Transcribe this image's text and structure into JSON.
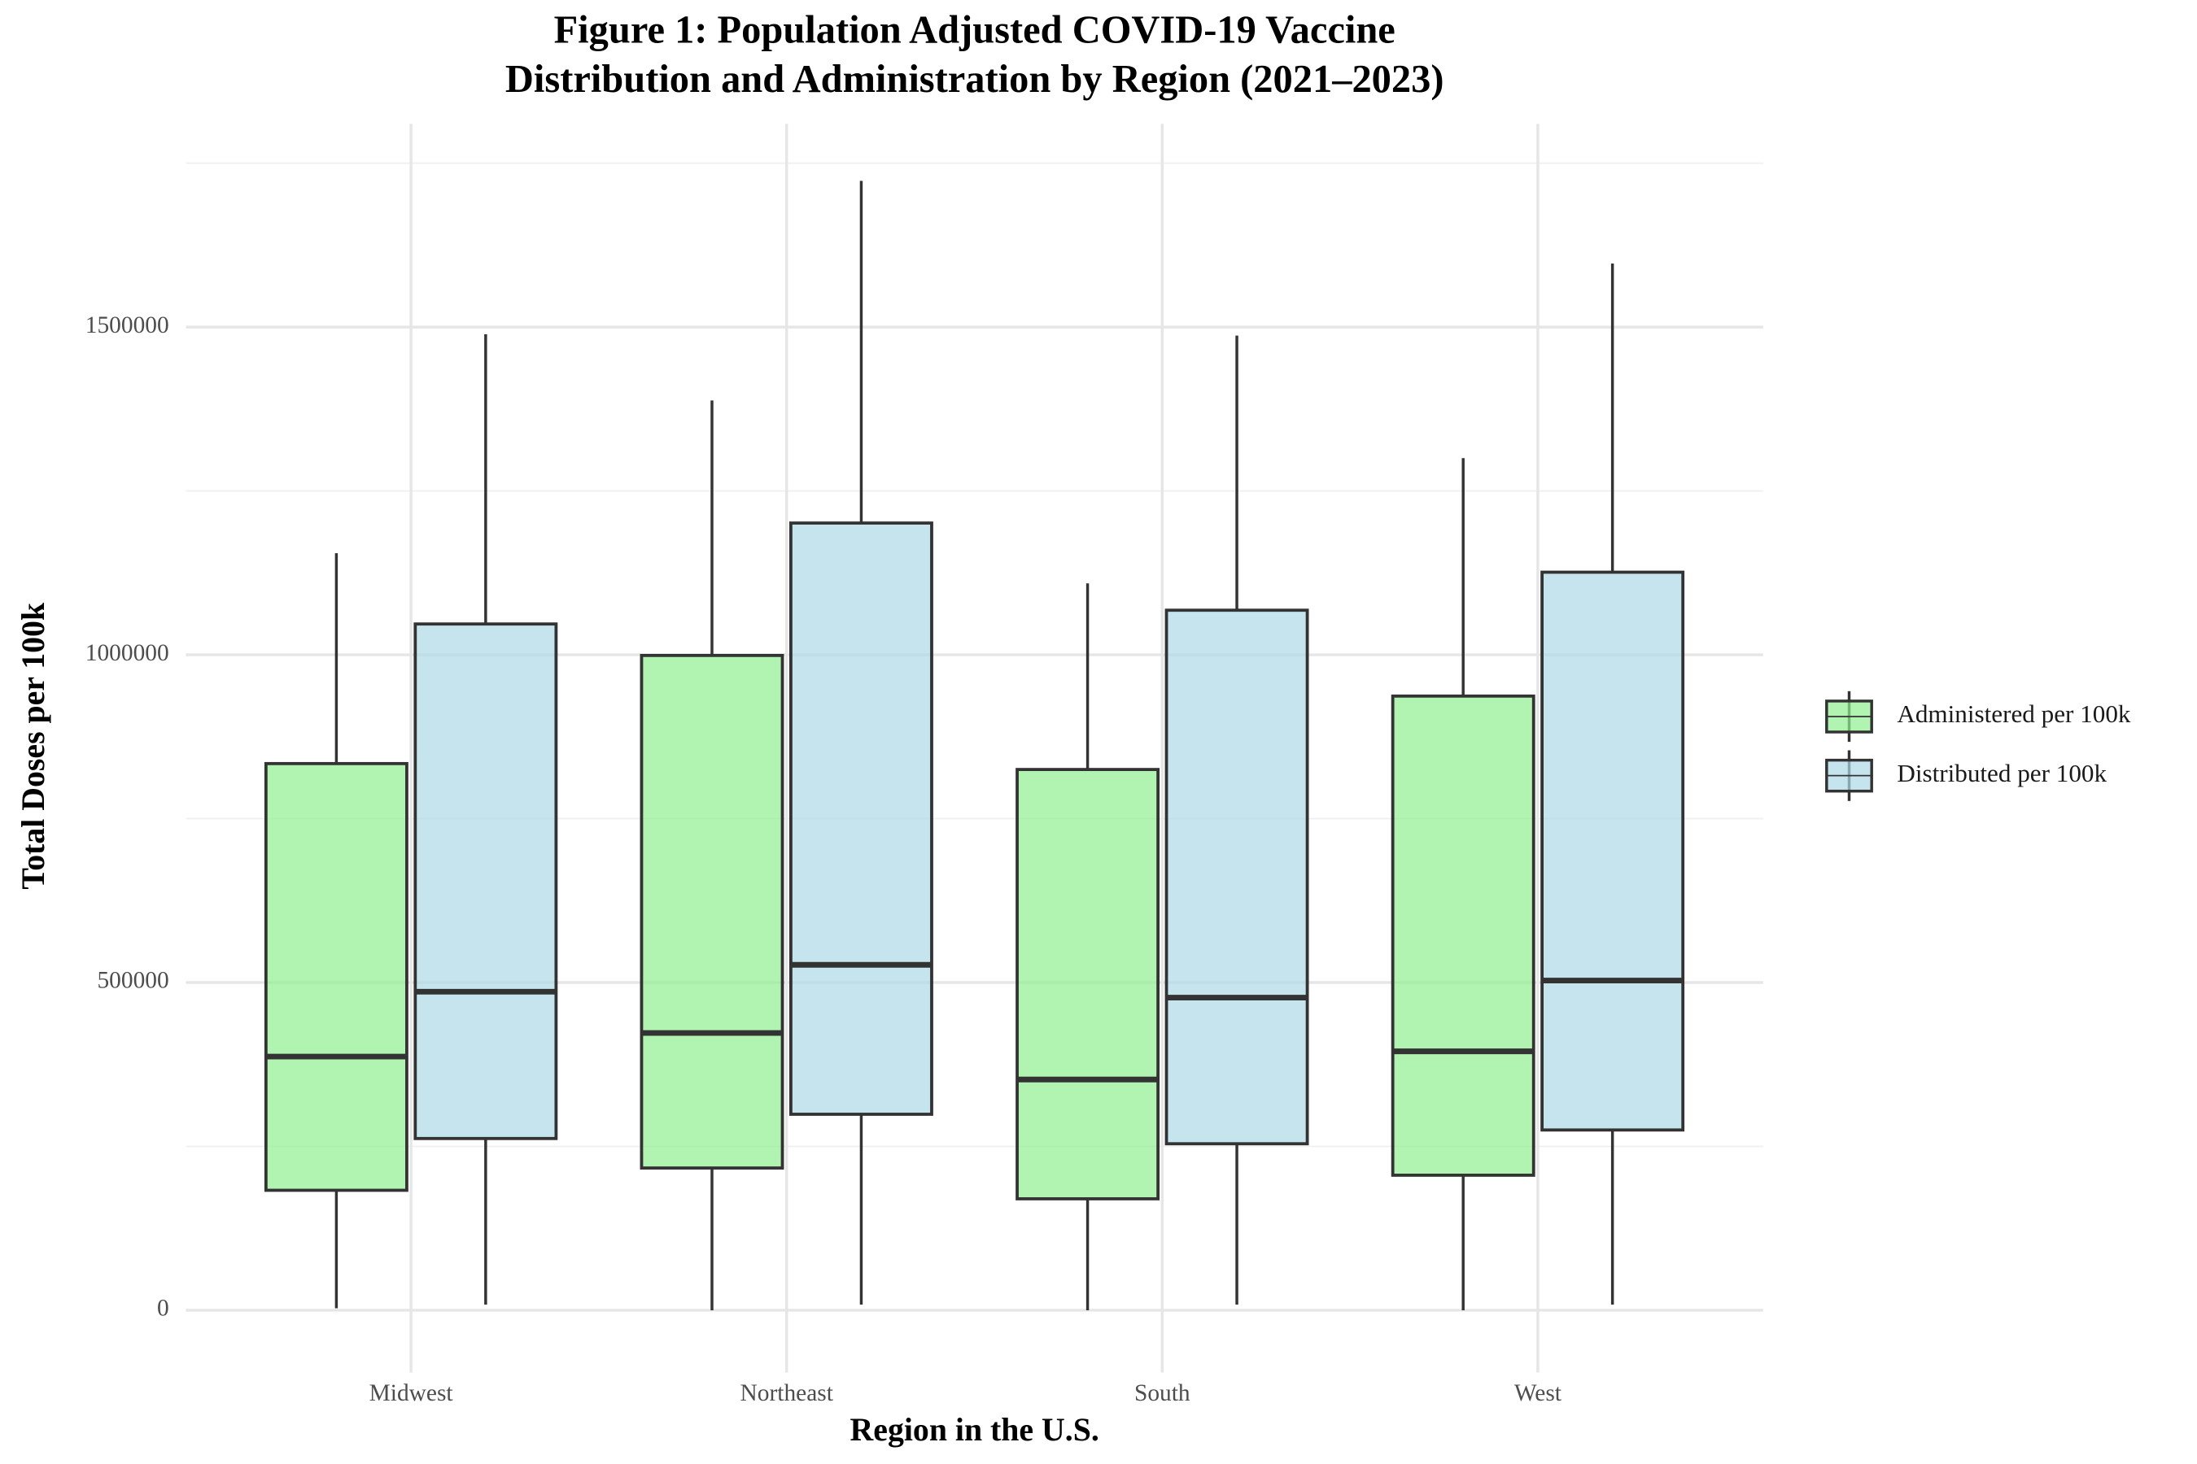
{
  "chart_data": {
    "type": "boxplot",
    "title": [
      "Figure 1: Population Adjusted COVID-19 Vaccine",
      "Distribution and Administration by Region (2021–2023)"
    ],
    "x_label": "Region in the U.S.",
    "y_label": "Total Doses per 100k",
    "categories": [
      "Midwest",
      "Northeast",
      "South",
      "West"
    ],
    "series": [
      {
        "name": "Administered per 100k",
        "color": "#90ee90",
        "min": [
          3000,
          0,
          0,
          0
        ],
        "q1": [
          183000,
          217000,
          170000,
          206000
        ],
        "median": [
          387000,
          423000,
          352000,
          395000
        ],
        "q3": [
          834000,
          999000,
          825000,
          937000
        ],
        "max": [
          1155000,
          1388000,
          1109000,
          1300000
        ]
      },
      {
        "name": "Distributed per 100k",
        "color": "#add8e6",
        "min": [
          8600,
          8600,
          8600,
          8600
        ],
        "q1": [
          262000,
          299000,
          254000,
          275000
        ],
        "median": [
          486000,
          527000,
          477000,
          503000
        ],
        "q3": [
          1047000,
          1201000,
          1068000,
          1126000
        ],
        "max": [
          1489000,
          1723000,
          1487000,
          1597000
        ]
      }
    ],
    "ylim": [
      -95000,
      1810000
    ],
    "yticks": [
      0,
      500000,
      1000000,
      1500000
    ],
    "grid": true,
    "legend_position": "right"
  }
}
